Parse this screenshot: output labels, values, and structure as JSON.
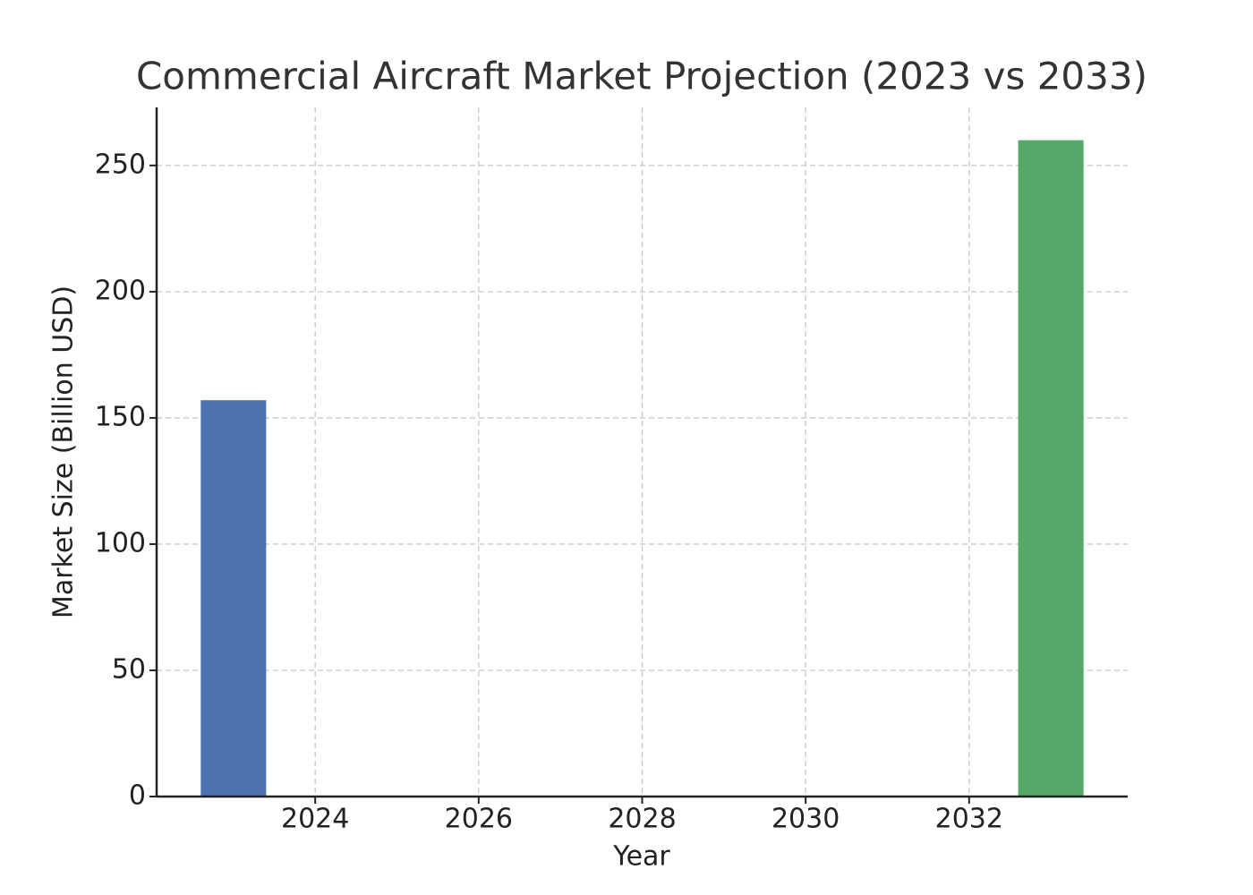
{
  "chart_data": {
    "type": "bar",
    "title": "Commercial Aircraft Market Projection (2023 vs 2033)",
    "x_label": "Year",
    "y_label": "Market Size (Billion USD)",
    "x": [
      2023,
      2033
    ],
    "values": [
      157,
      260
    ],
    "colors": [
      "#4c72b0",
      "#55a868"
    ],
    "xlim": [
      2022.06,
      2033.94
    ],
    "xticks": [
      2024,
      2026,
      2028,
      2030,
      2032
    ],
    "ylim": [
      0,
      273
    ],
    "yticks": [
      0,
      50,
      100,
      150,
      200,
      250
    ],
    "grid": true
  }
}
